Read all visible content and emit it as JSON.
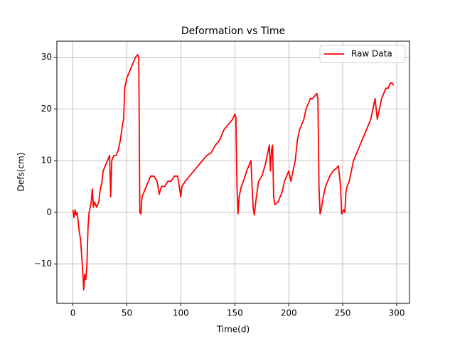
{
  "chart_data": {
    "type": "line",
    "title": "Deformation vs Time",
    "xlabel": "Time(d)",
    "ylabel": "Defs(cm)",
    "xlim": [
      -14.85,
      311.85
    ],
    "ylim": [
      -17.6,
      33.1
    ],
    "xticks": [
      0,
      50,
      100,
      150,
      200,
      250,
      300
    ],
    "yticks": [
      {
        "value": -10,
        "label": "−10"
      },
      0,
      10,
      20,
      30
    ],
    "grid": true,
    "legend": "upper right",
    "series": [
      {
        "name": "Raw Data",
        "color": "#ff0000",
        "x": [
          0,
          1,
          2,
          3,
          4,
          5,
          6,
          7,
          8,
          9,
          10,
          11,
          12,
          13,
          14,
          15,
          16,
          17,
          18,
          19,
          20,
          22,
          24,
          25,
          27,
          28,
          30,
          32,
          34,
          35,
          36,
          38,
          40,
          42,
          44,
          46,
          47,
          48,
          50,
          52,
          54,
          56,
          58,
          60,
          61,
          62,
          63,
          64,
          66,
          68,
          70,
          72,
          75,
          78,
          80,
          82,
          85,
          88,
          91,
          94,
          97,
          100,
          101,
          104,
          108,
          112,
          116,
          120,
          124,
          128,
          132,
          136,
          140,
          144,
          148,
          150,
          151,
          152,
          153,
          154,
          156,
          158,
          161,
          163,
          165,
          166,
          167,
          168,
          170,
          172,
          175,
          178,
          180,
          182,
          183,
          184,
          185,
          186,
          187,
          190,
          192,
          194,
          196,
          198,
          200,
          202,
          204,
          206,
          208,
          210,
          212,
          214,
          216,
          218,
          220,
          222,
          224,
          226,
          227,
          228,
          229,
          230,
          232,
          234,
          236,
          238,
          241,
          244,
          246,
          248,
          249,
          251,
          252,
          253,
          254,
          256,
          258,
          260,
          262,
          264,
          266,
          268,
          270,
          272,
          274,
          276,
          278,
          280,
          282,
          284,
          286,
          288,
          290,
          292,
          294,
          296,
          297
        ],
        "values": [
          0.5,
          -1,
          0.5,
          -0.5,
          0,
          -2,
          -4,
          -5,
          -8,
          -11,
          -15,
          -12,
          -13,
          -10,
          -3,
          0,
          1,
          2,
          4.5,
          1,
          2,
          1,
          2,
          4,
          6,
          8,
          9,
          10,
          11,
          3,
          10,
          11,
          11,
          12,
          14,
          17,
          18,
          24,
          26,
          27,
          28,
          29,
          30,
          30.5,
          30,
          0,
          -0.3,
          3,
          4,
          5,
          6,
          7,
          7,
          6,
          3.5,
          5,
          5,
          6,
          6,
          7,
          7,
          3,
          5,
          6,
          7,
          8,
          9,
          10,
          11,
          11.5,
          13,
          14,
          16,
          17,
          18,
          19,
          18.5,
          5,
          -0.3,
          3,
          5,
          6,
          8,
          9,
          10,
          5,
          1,
          -0.5,
          3,
          6,
          7,
          9,
          11,
          13,
          8,
          12,
          13,
          3,
          1.5,
          2,
          3,
          4,
          6,
          7,
          8,
          6,
          8,
          10,
          14,
          16,
          17,
          18,
          20,
          21,
          22,
          22,
          22.5,
          23,
          22,
          5,
          -0.3,
          0.5,
          3,
          5,
          6,
          7,
          8,
          8.5,
          9,
          5,
          -0.3,
          0.5,
          0,
          4,
          5,
          6,
          8,
          10,
          11,
          12,
          13,
          14,
          15,
          16,
          17,
          18,
          20,
          22,
          18,
          20,
          22,
          23,
          24,
          24,
          25,
          25,
          24.5
        ]
      }
    ]
  }
}
